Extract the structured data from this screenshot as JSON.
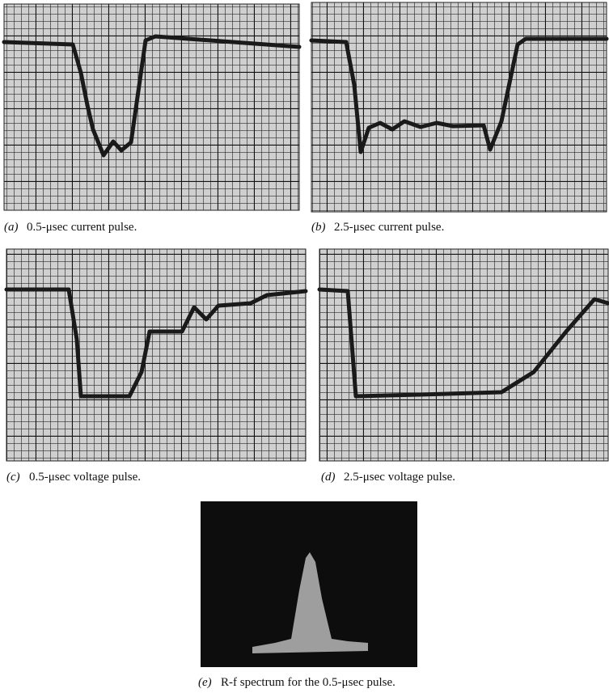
{
  "panels": [
    {
      "label": "(a)",
      "text": "0.5-μsec current pulse."
    },
    {
      "label": "(b)",
      "text": "2.5-μsec current pulse."
    },
    {
      "label": "(c)",
      "text": "0.5-μsec voltage pulse."
    },
    {
      "label": "(d)",
      "text": "2.5-μsec voltage pulse."
    },
    {
      "label": "(e)",
      "text": "R-f spectrum for the 0.5-μsec pulse."
    }
  ]
}
